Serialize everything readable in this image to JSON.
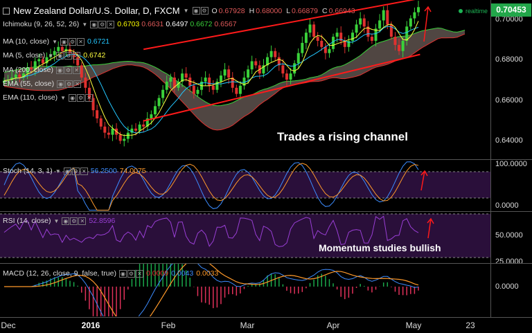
{
  "header": {
    "symbol_title": "New Zealand Dollar/U.S. Dollar, D, FXCM",
    "ohlc": [
      {
        "k": "O",
        "v": "0.67928"
      },
      {
        "k": "H",
        "v": "0.68000"
      },
      {
        "k": "L",
        "v": "0.66879"
      },
      {
        "k": "C",
        "v": "0.66943"
      }
    ],
    "realtime_label": "realtime",
    "last_price": "0.70453"
  },
  "indicators": {
    "ichimoku": {
      "label": "Ichimoku (9, 26, 52, 26)",
      "values": [
        "0.6703",
        "0.6631",
        "0.6497",
        "0.6672",
        "0.6567"
      ],
      "colors": [
        "#ffff00",
        "#e05a5a",
        "#ffffff",
        "#3ad13a",
        "#e05a5a"
      ]
    },
    "ma10": {
      "label": "MA (10, close)",
      "value": "0.6721",
      "color": "#24c7ff"
    },
    "ma5": {
      "label": "MA (5, close)",
      "value": "0.6742",
      "color": "#ffff40"
    },
    "ma200": {
      "label": "MA (200, close)"
    },
    "ema55": {
      "label": "EMA (55, close)"
    },
    "ema110": {
      "label": "EMA (110, close)"
    },
    "stoch": {
      "label": "Stoch (14, 3, 1)",
      "k": "56.2500",
      "d": "74.0075"
    },
    "rsi": {
      "label": "RSI (14, close)",
      "value": "52.8596"
    },
    "macd": {
      "label": "MACD (12, 26, close, 9, false, true)",
      "hist": "0.0009",
      "macd": "0.0043",
      "signal": "0.0033"
    }
  },
  "annotations": {
    "channel": "Trades a rising channel",
    "momentum": "Momentum studies bullish"
  },
  "axes": {
    "price": [
      "0.70000",
      "0.68000",
      "0.66000",
      "0.64000"
    ],
    "stoch": [
      "100.0000",
      "0.0000"
    ],
    "rsi": [
      "50.0000",
      "25.0000"
    ],
    "macd": [
      "0.0000"
    ],
    "time": [
      "Dec",
      "2016",
      "Feb",
      "Mar",
      "Apr",
      "May",
      "23"
    ]
  },
  "colors": {
    "up": "#3ad13a",
    "down": "#e0312f",
    "channel": "#ff1a1a",
    "stoch_k": "#3c8cff",
    "stoch_d": "#ff9a2a",
    "rsi": "#9a3fd6",
    "macd_line": "#3c8cff",
    "signal_line": "#ff9a2a",
    "osc_bg": "#2a0f3a"
  },
  "chart_data": [
    {
      "type": "candlestick",
      "title": "New Zealand Dollar/U.S. Dollar, D, FXCM",
      "x_range": [
        "2015-12-01",
        "2016-05-23"
      ],
      "ylim": [
        0.63,
        0.708
      ],
      "series": [
        {
          "name": "NZD/USD close",
          "values": [
            0.6685,
            0.669,
            0.67,
            0.6715,
            0.67,
            0.672,
            0.675,
            0.674,
            0.678,
            0.679,
            0.677,
            0.68,
            0.681,
            0.683,
            0.685,
            0.683,
            0.684,
            0.682,
            0.68,
            0.676,
            0.67,
            0.665,
            0.66,
            0.654,
            0.65,
            0.646,
            0.643,
            0.642,
            0.645,
            0.642,
            0.639,
            0.64,
            0.643,
            0.645,
            0.644,
            0.647,
            0.646,
            0.65,
            0.652,
            0.656,
            0.66,
            0.664,
            0.668,
            0.67,
            0.665,
            0.668,
            0.672,
            0.67,
            0.666,
            0.662,
            0.664,
            0.668,
            0.67,
            0.666,
            0.664,
            0.668,
            0.671,
            0.674,
            0.67,
            0.665,
            0.662,
            0.666,
            0.67,
            0.674,
            0.678,
            0.676,
            0.672,
            0.676,
            0.68,
            0.683,
            0.68,
            0.676,
            0.672,
            0.669,
            0.672,
            0.677,
            0.682,
            0.687,
            0.692,
            0.696,
            0.69,
            0.688,
            0.685,
            0.682,
            0.684,
            0.69,
            0.692,
            0.688,
            0.685,
            0.688,
            0.692,
            0.696,
            0.699,
            0.695,
            0.69,
            0.688,
            0.694,
            0.698,
            0.703,
            0.696,
            0.69,
            0.686,
            0.683,
            0.688,
            0.695,
            0.699,
            0.702,
            0.7045
          ]
        },
        {
          "name": "MA (10, close)",
          "values": "derived"
        },
        {
          "name": "MA (5, close)",
          "values": "derived"
        }
      ],
      "channel": {
        "upper": [
          [
            0.671,
            0
          ],
          [
            0.707,
            101
          ]
        ],
        "lower": [
          [
            0.632,
            0
          ],
          [
            0.679,
            101
          ]
        ]
      }
    },
    {
      "type": "line",
      "title": "Stoch (14, 3, 1)",
      "ylim": [
        0,
        100
      ],
      "series": [
        {
          "name": "%K",
          "last": 56.25
        },
        {
          "name": "%D",
          "last": 74.0075
        }
      ]
    },
    {
      "type": "line",
      "title": "RSI (14, close)",
      "ylim": [
        20,
        70
      ],
      "series": [
        {
          "name": "RSI",
          "last": 52.8596
        }
      ]
    },
    {
      "type": "bar",
      "title": "MACD (12, 26, close, 9, false, true)",
      "series": [
        {
          "name": "Histogram",
          "last": 0.0009
        },
        {
          "name": "MACD",
          "last": 0.0043
        },
        {
          "name": "Signal",
          "last": 0.0033
        }
      ]
    }
  ]
}
